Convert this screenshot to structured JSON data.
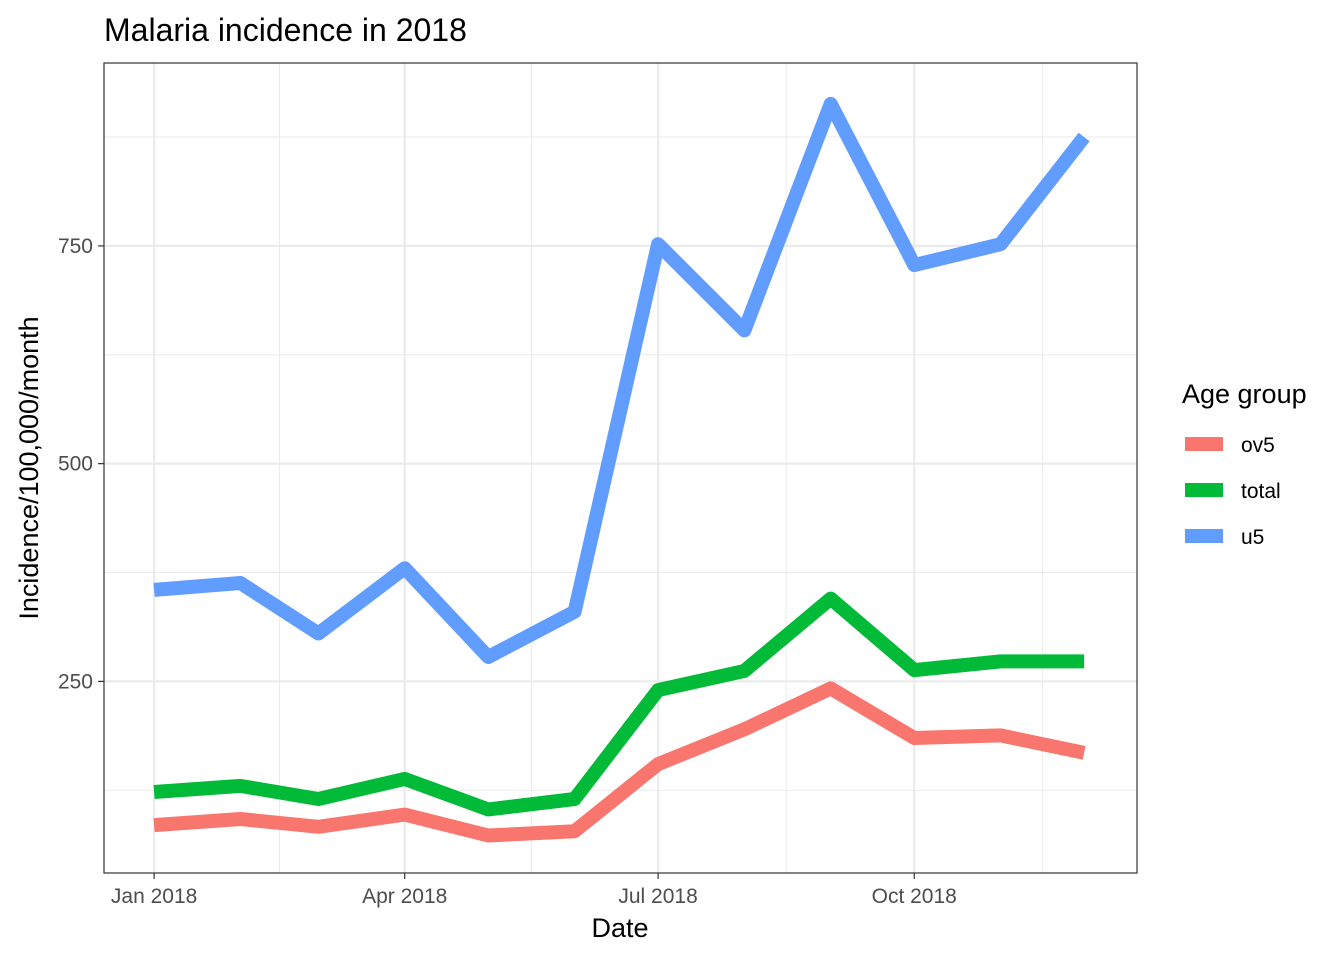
{
  "chart_data": {
    "type": "line",
    "title": "Malaria incidence in 2018",
    "xlabel": "Date",
    "ylabel": "Incidence/100,000/month",
    "x": [
      "2018-01-01",
      "2018-02-01",
      "2018-03-01",
      "2018-04-01",
      "2018-05-01",
      "2018-06-01",
      "2018-07-01",
      "2018-08-01",
      "2018-09-01",
      "2018-10-01",
      "2018-11-01",
      "2018-12-01"
    ],
    "x_ticks": [
      {
        "date": "2018-01-01",
        "label": "Jan 2018"
      },
      {
        "date": "2018-04-01",
        "label": "Apr 2018"
      },
      {
        "date": "2018-07-01",
        "label": "Jul 2018"
      },
      {
        "date": "2018-10-01",
        "label": "Oct 2018"
      }
    ],
    "xlim": [
      "2017-12-14",
      "2018-12-20"
    ],
    "y_ticks": [
      250,
      500,
      750
    ],
    "ylim": [
      30,
      960
    ],
    "grid": true,
    "legend": {
      "title": "Age group",
      "position": "right"
    },
    "series": [
      {
        "name": "ov5",
        "color": "#F8766D",
        "values": [
          85,
          92,
          83,
          97,
          73,
          78,
          155,
          195,
          242,
          185,
          188,
          168
        ]
      },
      {
        "name": "total",
        "color": "#00BA38",
        "values": [
          123,
          130,
          115,
          138,
          103,
          115,
          240,
          262,
          345,
          263,
          273,
          273
        ]
      },
      {
        "name": "u5",
        "color": "#619CFF",
        "values": [
          355,
          363,
          305,
          380,
          278,
          330,
          752,
          653,
          913,
          728,
          752,
          875
        ]
      }
    ]
  }
}
